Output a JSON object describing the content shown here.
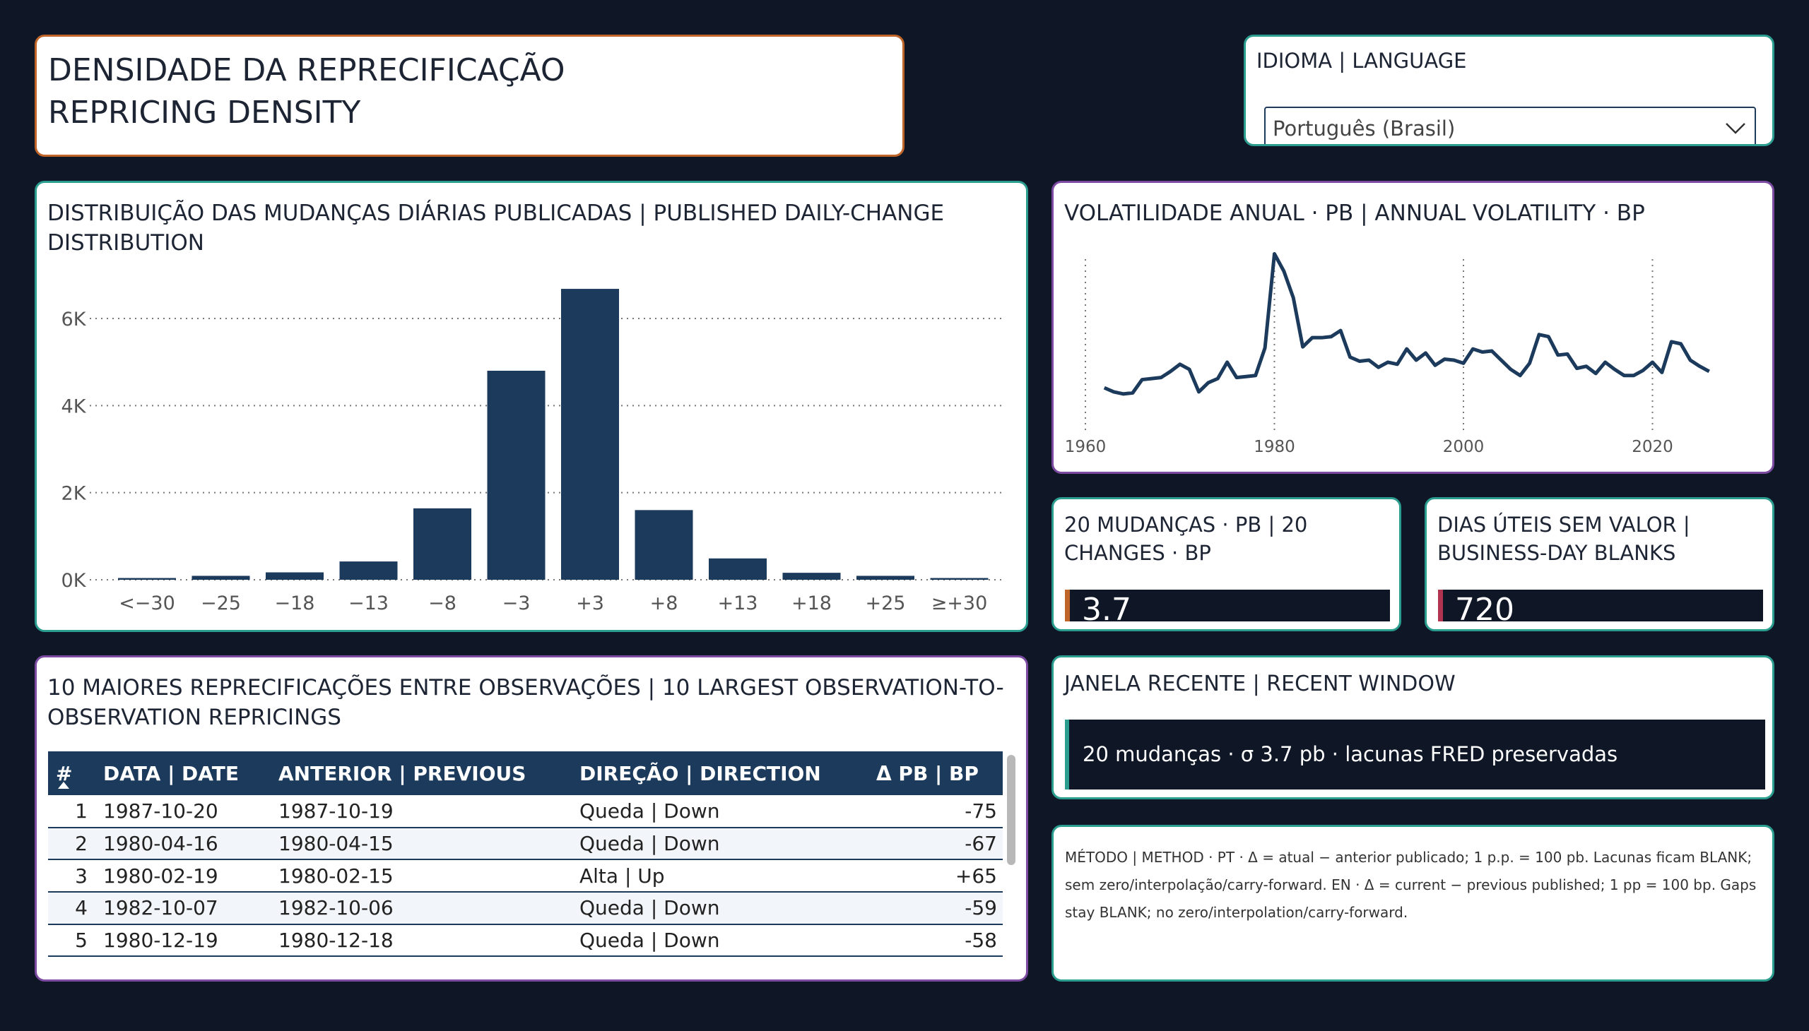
{
  "title": {
    "line1": "DENSIDADE DA REPRECIFICAÇÃO",
    "line2": "REPRICING DENSITY"
  },
  "language": {
    "label": "IDIOMA | LANGUAGE",
    "selected": "Português (Brasil)"
  },
  "distribution": {
    "title": "DISTRIBUIÇÃO DAS MUDANÇAS DIÁRIAS PUBLICADAS | PUBLISHED DAILY-CHANGE DISTRIBUTION"
  },
  "volatility": {
    "title": "VOLATILIDADE ANUAL · PB | ANNUAL VOLATILITY · BP"
  },
  "kpi_changes": {
    "title": "20 MUDANÇAS · PB | 20 CHANGES · BP",
    "value": "3.7",
    "accent": "#c0652a"
  },
  "kpi_blanks": {
    "title": "DIAS ÚTEIS SEM VALOR | BUSINESS-DAY BLANKS",
    "value": "720",
    "accent": "#b0344f"
  },
  "recent_window": {
    "title": "JANELA RECENTE | RECENT WINDOW",
    "text": "20 mudanças · σ 3.7 pb · lacunas FRED preservadas"
  },
  "method": {
    "text": "MÉTODO | METHOD · PT · Δ = atual − anterior publicado; 1 p.p. = 100 pb. Lacunas ficam BLANK; sem zero/interpolação/carry-forward. EN · Δ = current − previous published; 1 pp = 100 bp. Gaps stay BLANK; no zero/interpolation/carry-forward."
  },
  "largest": {
    "title": "10 MAIORES REPRECIFICAÇÕES ENTRE OBSERVAÇÕES | 10 LARGEST OBSERVATION-TO-OBSERVATION REPRICINGS",
    "columns": [
      "#",
      "DATA | DATE",
      "ANTERIOR | PREVIOUS",
      "DIREÇÃO | DIRECTION",
      "Δ PB | BP"
    ],
    "rows": [
      [
        "1",
        "1987-10-20",
        "1987-10-19",
        "Queda | Down",
        "-75"
      ],
      [
        "2",
        "1980-04-16",
        "1980-04-15",
        "Queda | Down",
        "-67"
      ],
      [
        "3",
        "1980-02-19",
        "1980-02-15",
        "Alta | Up",
        "+65"
      ],
      [
        "4",
        "1982-10-07",
        "1982-10-06",
        "Queda | Down",
        "-59"
      ],
      [
        "5",
        "1980-12-19",
        "1980-12-18",
        "Queda | Down",
        "-58"
      ]
    ]
  },
  "chart_data": [
    {
      "type": "bar",
      "title": "DISTRIBUIÇÃO DAS MUDANÇAS DIÁRIAS PUBLICADAS | PUBLISHED DAILY-CHANGE DISTRIBUTION",
      "categories": [
        "<−30",
        "−25",
        "−18",
        "−13",
        "−8",
        "−3",
        "+3",
        "+8",
        "+13",
        "+18",
        "+25",
        "≥+30"
      ],
      "values": [
        40,
        90,
        170,
        420,
        1640,
        4800,
        6680,
        1600,
        490,
        160,
        90,
        40
      ],
      "ylim": [
        0,
        7000
      ],
      "yticks": [
        0,
        2000,
        4000,
        6000
      ],
      "ytick_labels": [
        "0K",
        "2K",
        "4K",
        "6K"
      ],
      "grid": true,
      "color": "#1b3a5c"
    },
    {
      "type": "line",
      "title": "VOLATILIDADE ANUAL · PB | ANNUAL VOLATILITY · BP",
      "x": [
        1962,
        1963,
        1964,
        1965,
        1966,
        1967,
        1968,
        1969,
        1970,
        1971,
        1972,
        1973,
        1974,
        1975,
        1976,
        1977,
        1978,
        1979,
        1980,
        1981,
        1982,
        1983,
        1984,
        1985,
        1986,
        1987,
        1988,
        1989,
        1990,
        1991,
        1992,
        1993,
        1994,
        1995,
        1996,
        1997,
        1998,
        1999,
        2000,
        2001,
        2002,
        2003,
        2004,
        2005,
        2006,
        2007,
        2008,
        2009,
        2010,
        2011,
        2012,
        2013,
        2014,
        2015,
        2016,
        2017,
        2018,
        2019,
        2020,
        2021,
        2022,
        2023,
        2024,
        2025,
        2026
      ],
      "y": [
        2.2,
        1.8,
        1.6,
        1.7,
        3.0,
        3.1,
        3.2,
        3.8,
        4.5,
        4.0,
        1.8,
        2.7,
        3.1,
        4.7,
        3.2,
        3.3,
        3.4,
        6.1,
        15.3,
        13.6,
        11.0,
        6.2,
        7.1,
        7.1,
        7.2,
        7.8,
        5.2,
        4.8,
        4.9,
        4.2,
        4.7,
        4.5,
        6.0,
        4.9,
        5.6,
        4.4,
        5.0,
        4.9,
        4.6,
        6.0,
        5.7,
        5.8,
        4.9,
        4.0,
        3.4,
        4.6,
        7.4,
        7.2,
        5.4,
        5.5,
        4.1,
        4.3,
        3.6,
        4.7,
        4.0,
        3.4,
        3.4,
        3.9,
        4.7,
        3.7,
        6.7,
        6.5,
        4.9,
        4.3,
        3.8
      ],
      "xlim": [
        1959,
        2027
      ],
      "ylim": [
        0,
        16
      ],
      "xticks": [
        1960,
        1980,
        2000,
        2020
      ],
      "xgrid": true,
      "color": "#1b3a5c"
    }
  ]
}
